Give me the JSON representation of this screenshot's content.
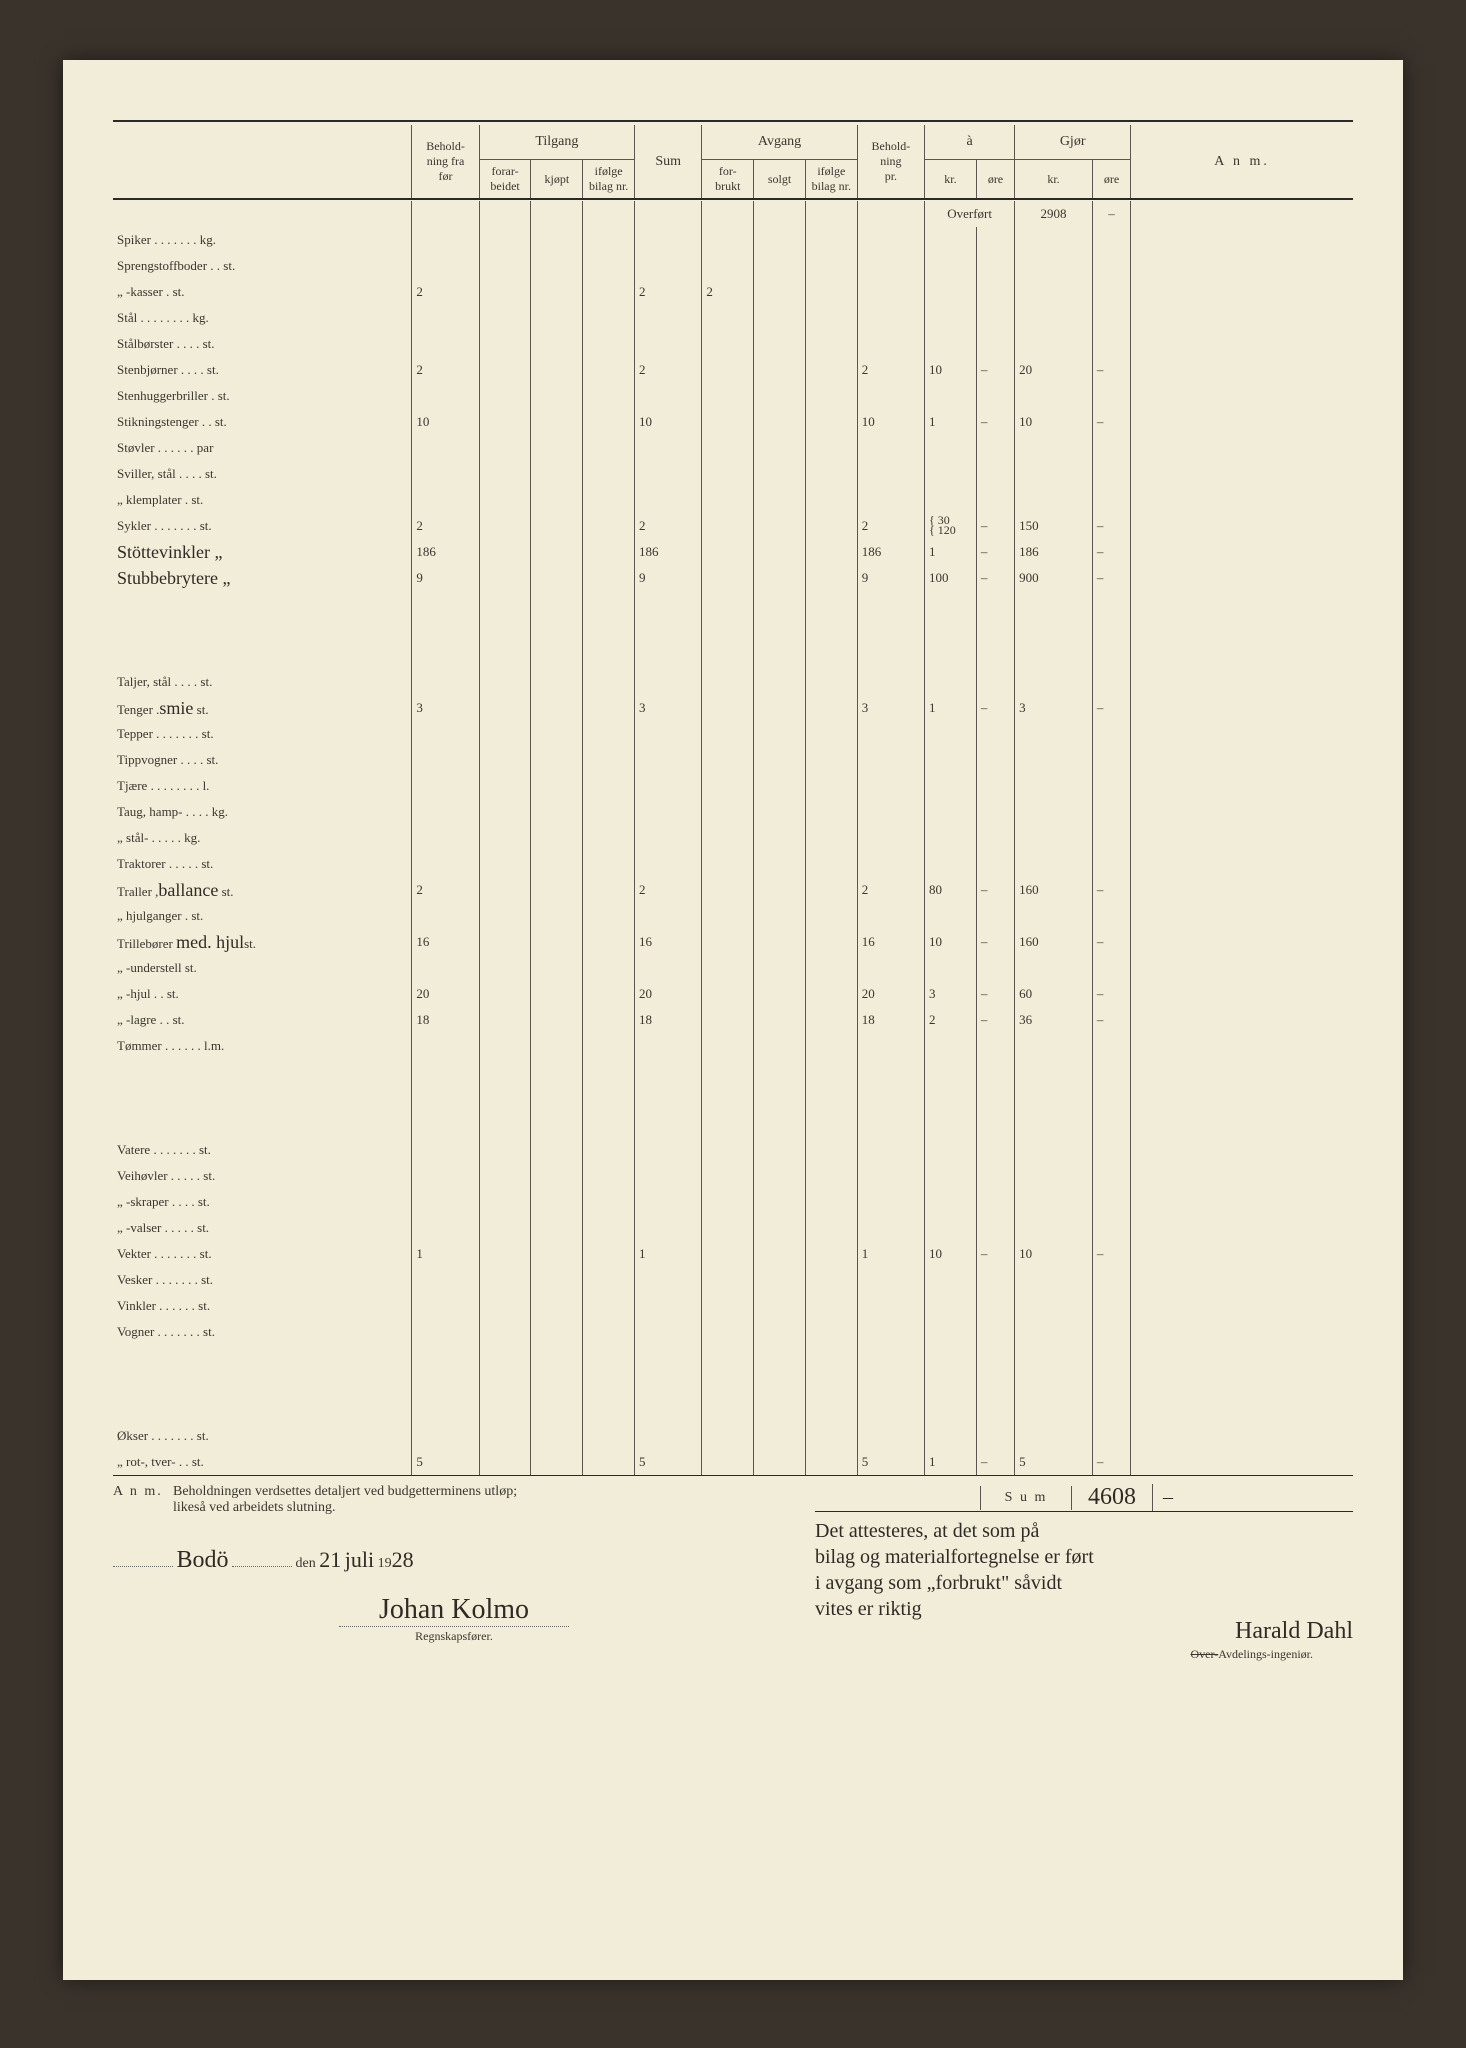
{
  "header": {
    "cols": [
      "Behold-\nning fra\nfør",
      "Tilgang",
      "Sum",
      "Avgang",
      "Behold-\nning\npr.",
      "à",
      "Gjør",
      "A n m."
    ],
    "tilgang_sub": [
      "forar-\nbeidet",
      "kjøpt",
      "ifølge\nbilag nr."
    ],
    "avgang_sub": [
      "for-\nbrukt",
      "solgt",
      "ifølge\nbilag nr."
    ],
    "a_sub": [
      "kr.",
      "øre"
    ],
    "gjor_sub": [
      "kr.",
      "øre"
    ]
  },
  "overfort_label": "Overført",
  "overfort_value": "2908",
  "overfort_ore": "–",
  "rows": [
    {
      "label": "Spiker . . . . . . . kg."
    },
    {
      "label": "Sprengstoffboder . . st."
    },
    {
      "label": "      „      -kasser   .   st.",
      "before": "2",
      "sum": "2",
      "forbrukt": "2"
    },
    {
      "label": "Stål . . . . . . . . kg."
    },
    {
      "label": "Stålbørster . . . . st."
    },
    {
      "label": "Stenbjørner . . . . st.",
      "before": "2",
      "sum": "2",
      "pr": "2",
      "kr": "10",
      "ore": "–",
      "gkr": "20",
      "gore": "–"
    },
    {
      "label": "Stenhuggerbriller . st."
    },
    {
      "label": "Stikningstenger . . st.",
      "before": "10",
      "sum": "10",
      "pr": "10",
      "kr": "1",
      "ore": "–",
      "gkr": "10",
      "gore": "–"
    },
    {
      "label": "Støvler . . . . . . par"
    },
    {
      "label": "Sviller, stål . . . . st."
    },
    {
      "label": "   „    klemplater . st."
    },
    {
      "label": "Sykler . . . . . . . st.",
      "before": "2",
      "sum": "2",
      "pr": "2",
      "kr_stack": [
        "30",
        "120"
      ],
      "ore": "–",
      "gkr": "150",
      "gore": "–"
    },
    {
      "label_hand": "Stöttevinkler „",
      "before": "186",
      "sum": "186",
      "pr": "186",
      "kr": "1",
      "ore": "–",
      "gkr": "186",
      "gore": "–"
    },
    {
      "label_hand": "Stubbebrytere „",
      "before": "9",
      "sum": "9",
      "pr": "9",
      "kr": "100",
      "ore": "–",
      "gkr": "900",
      "gore": "–"
    },
    {
      "spacer": true
    },
    {
      "spacer": true
    },
    {
      "spacer": true
    },
    {
      "label": "Taljer, stål . . . . st."
    },
    {
      "label": "Tenger  .",
      "label_hand_append": "smie",
      "label_suffix": " st.",
      "before": "3",
      "sum": "3",
      "pr": "3",
      "kr": "1",
      "ore": "–",
      "gkr": "3",
      "gore": "–"
    },
    {
      "label": "Tepper . . . . . . . st."
    },
    {
      "label": "Tippvogner . . . . st."
    },
    {
      "label": "Tjære . . . . . . . . l."
    },
    {
      "label": "Taug, hamp- . . . . kg."
    },
    {
      "label": "   „   stål- . . . . . kg."
    },
    {
      "label": "Traktorer . . . . . st."
    },
    {
      "label": "Traller ,",
      "label_hand_append": "ballance",
      "label_suffix": " st.",
      "before": "2",
      "sum": "2",
      "pr": "2",
      "kr": "80",
      "ore": "–",
      "gkr": "160",
      "gore": "–"
    },
    {
      "label": "   „    hjulganger . st."
    },
    {
      "label": "Trillebører ",
      "label_hand_append": "med. hjul",
      "label_suffix": "st.",
      "before": "16",
      "sum": "16",
      "pr": "16",
      "kr": "10",
      "ore": "–",
      "gkr": "160",
      "gore": "–"
    },
    {
      "label": "      „      -understell  st."
    },
    {
      "label": "      „      -hjul   .   .   st.",
      "before": "20",
      "sum": "20",
      "pr": "20",
      "kr": "3",
      "ore": "–",
      "gkr": "60",
      "gore": "–"
    },
    {
      "label": "      „      -lagre  .   .   st.",
      "before": "18",
      "sum": "18",
      "pr": "18",
      "kr": "2",
      "ore": "–",
      "gkr": "36",
      "gore": "–"
    },
    {
      "label": "Tømmer . . . . . . l.m."
    },
    {
      "spacer": true
    },
    {
      "spacer": true
    },
    {
      "spacer": true
    },
    {
      "label": "Vatere . . . . . . . st."
    },
    {
      "label": "Veihøvler . . . . . st."
    },
    {
      "label": "   „  -skraper . . . . st."
    },
    {
      "label": "   „  -valser . . . . . st."
    },
    {
      "label": "Vekter . . . . . . . st.",
      "before": "1",
      "sum": "1",
      "pr": "1",
      "kr": "10",
      "ore": "–",
      "gkr": "10",
      "gore": "–"
    },
    {
      "label": "Vesker . . . . . . . st."
    },
    {
      "label": "Vinkler . . . . . . st."
    },
    {
      "label": "Vogner . . . . . . . st."
    },
    {
      "spacer": true
    },
    {
      "spacer": true
    },
    {
      "spacer": true
    },
    {
      "label": "Økser . . . . . . . st."
    },
    {
      "label": "   „   rot-, tver- .  .  st.",
      "before": "5",
      "sum": "5",
      "pr": "5",
      "kr": "1",
      "ore": "–",
      "gkr": "5",
      "gore": "–"
    }
  ],
  "sum_label": "S u m",
  "sum_value": "4608",
  "sum_ore": "–",
  "footer": {
    "anm_label": "A n m.",
    "anm_text": "Beholdningen verdsettes detaljert ved budgetterminens utløp;\nlikeså ved arbeidets slutning.",
    "place": "Bodö",
    "den": "den",
    "date_day": "21",
    "date_month": "juli",
    "year_prefix": "19",
    "year_suffix": "28",
    "sig_left": "Johan  Kolmo",
    "regnskap": "Regnskapsfører.",
    "attest": "Det attesteres, at det som på\nbilag og materialfortegnelse er ført\ni avgang som „forbrukt\" såvidt\nvites er riktig",
    "sig_right": "Harald Dahl",
    "over": "Over-",
    "avd": "Avdelings-ingeniør."
  }
}
